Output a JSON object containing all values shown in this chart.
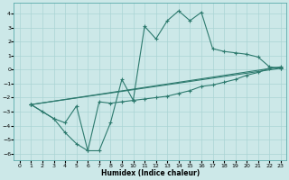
{
  "xlabel": "Humidex (Indice chaleur)",
  "bg_color": "#cce8e8",
  "grid_color": "#aad4d4",
  "line_color": "#2d7a6e",
  "xlim": [
    -0.5,
    23.5
  ],
  "ylim": [
    -6.5,
    4.8
  ],
  "xticks": [
    0,
    1,
    2,
    3,
    4,
    5,
    6,
    7,
    8,
    9,
    10,
    11,
    12,
    13,
    14,
    15,
    16,
    17,
    18,
    19,
    20,
    21,
    22,
    23
  ],
  "yticks": [
    -6,
    -5,
    -4,
    -3,
    -2,
    -1,
    0,
    1,
    2,
    3,
    4
  ],
  "line1_x": [
    1,
    2,
    3,
    4,
    5,
    6,
    7,
    8,
    9,
    10,
    11,
    12,
    13,
    14,
    15,
    16,
    17,
    18,
    19,
    20,
    21,
    22,
    23
  ],
  "line1_y": [
    -2.5,
    -3.0,
    -3.5,
    -4.5,
    -5.3,
    -5.8,
    -5.8,
    -3.8,
    -0.7,
    -2.2,
    3.1,
    2.2,
    3.5,
    4.2,
    3.5,
    4.1,
    1.5,
    1.3,
    1.2,
    1.1,
    0.9,
    0.2,
    0.1
  ],
  "line2_x": [
    1,
    23
  ],
  "line2_y": [
    -2.5,
    0.2
  ],
  "line3_x": [
    1,
    23
  ],
  "line3_y": [
    -2.5,
    0.1
  ],
  "line4_x": [
    1,
    3,
    4,
    5,
    6,
    7,
    8,
    9,
    10,
    11,
    12,
    13,
    14,
    15,
    16,
    17,
    18,
    19,
    20,
    21,
    22,
    23
  ],
  "line4_y": [
    -2.5,
    -3.5,
    -3.8,
    -2.6,
    -5.8,
    -2.3,
    -2.4,
    -2.3,
    -2.2,
    -2.1,
    -2.0,
    -1.9,
    -1.7,
    -1.5,
    -1.2,
    -1.1,
    -0.9,
    -0.7,
    -0.4,
    -0.2,
    0.1,
    0.15
  ]
}
